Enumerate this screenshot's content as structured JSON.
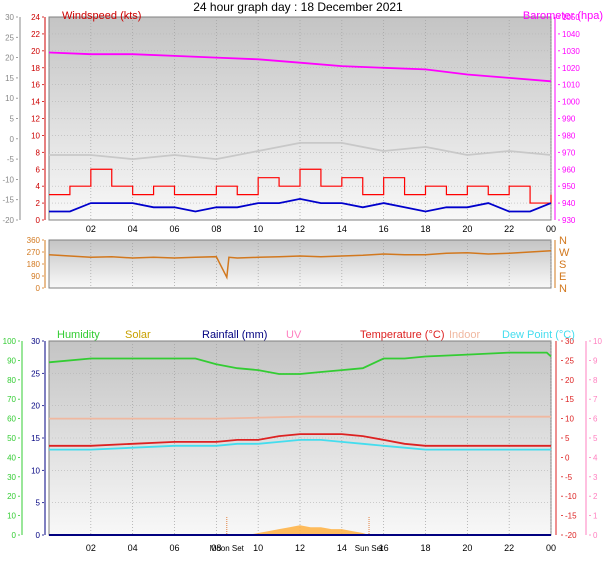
{
  "title": "24 hour graph day : 18 December 2021",
  "colors": {
    "windspeed": "#cc0000",
    "gust": "#ff0000",
    "avg_wind": "#0000cc",
    "barometer": "#ff00ff",
    "gray_series": "#c8c8c8",
    "direction": "#d2781e",
    "humidity": "#33cc33",
    "solar": "#c8a000",
    "solar_fill": "#ffb040",
    "rainfall": "#000080",
    "uv": "#ff80c0",
    "temperature": "#dd2222",
    "indoor": "#f0b8a0",
    "dewpoint": "#44ddee",
    "uv_axis": "#ff80c0"
  },
  "chart_data": [
    {
      "type": "line",
      "labels": {
        "left": "Windspeed (kts)",
        "right": "Barometer (hpa)"
      },
      "x_ticks": [
        "02",
        "04",
        "06",
        "08",
        "10",
        "12",
        "14",
        "16",
        "18",
        "20",
        "22",
        "00"
      ],
      "xlim": [
        0,
        24
      ],
      "outer_left_ticks": [
        "30",
        "25",
        "20",
        "15",
        "10",
        "5",
        "0",
        "-5",
        "-10",
        "-15",
        "-20"
      ],
      "outer_left_lim": [
        -20,
        30
      ],
      "left_ticks": [
        "24",
        "22",
        "20",
        "18",
        "16",
        "14",
        "12",
        "10",
        "8",
        "6",
        "4",
        "2",
        "0"
      ],
      "left_lim": [
        0,
        24
      ],
      "right_ticks": [
        "1050",
        "1040",
        "1030",
        "1020",
        "1010",
        "1000",
        "990",
        "980",
        "970",
        "960",
        "950",
        "940",
        "930"
      ],
      "right_lim": [
        930,
        1050
      ],
      "series": [
        {
          "key": "barometer",
          "axis": "right",
          "color_key": "barometer",
          "x": [
            0,
            2,
            4,
            6,
            8,
            10,
            12,
            14,
            16,
            18,
            20,
            22,
            24
          ],
          "y": [
            1029,
            1028,
            1028,
            1027,
            1026,
            1025,
            1023,
            1021,
            1020,
            1019,
            1016,
            1014,
            1012
          ]
        },
        {
          "key": "gray_series",
          "axis": "outer_left",
          "color_key": "gray_series",
          "x": [
            0,
            2,
            4,
            6,
            8,
            10,
            12,
            14,
            16,
            18,
            20,
            22,
            24
          ],
          "y": [
            -4,
            -4,
            -5,
            -4,
            -5,
            -3,
            -1,
            -1,
            -3,
            -2,
            -4,
            -3,
            -4
          ]
        },
        {
          "key": "gust",
          "axis": "left",
          "color_key": "gust",
          "x": [
            0,
            1,
            2,
            3,
            4,
            5,
            6,
            7,
            8,
            9,
            10,
            11,
            12,
            13,
            14,
            15,
            16,
            17,
            18,
            19,
            20,
            21,
            22,
            23,
            24
          ],
          "y": [
            3,
            4,
            6,
            4,
            3,
            4,
            3,
            3,
            4,
            3,
            5,
            4,
            6,
            4,
            5,
            3,
            5,
            3,
            4,
            3,
            4,
            3,
            4,
            2,
            3
          ]
        },
        {
          "key": "avg_wind",
          "axis": "left",
          "color_key": "avg_wind",
          "x": [
            0,
            1,
            2,
            3,
            4,
            5,
            6,
            7,
            8,
            9,
            10,
            11,
            12,
            13,
            14,
            15,
            16,
            17,
            18,
            19,
            20,
            21,
            22,
            23,
            24
          ],
          "y": [
            1,
            1,
            2,
            2,
            2,
            1.5,
            1.5,
            1,
            1.5,
            1.5,
            2,
            2,
            2.5,
            2,
            2,
            1.5,
            2,
            1.5,
            1,
            1.5,
            1.5,
            2,
            1,
            1,
            2
          ]
        }
      ]
    },
    {
      "type": "scatter",
      "labels": {
        "left": "",
        "right": ""
      },
      "x_ticks": [],
      "xlim": [
        0,
        24
      ],
      "left_ticks": [
        "360",
        "270",
        "180",
        "90",
        "0"
      ],
      "left_lim": [
        0,
        360
      ],
      "right_ticks": [
        "N",
        "W",
        "S",
        "E",
        "N"
      ],
      "series": [
        {
          "key": "direction",
          "axis": "left",
          "color_key": "direction",
          "x": [
            0,
            1,
            2,
            3,
            4,
            5,
            6,
            7,
            8,
            8.5,
            8.6,
            9,
            10,
            11,
            12,
            13,
            14,
            15,
            16,
            17,
            18,
            19,
            20,
            21,
            22,
            23,
            24
          ],
          "y": [
            250,
            240,
            230,
            235,
            225,
            230,
            225,
            230,
            235,
            80,
            230,
            225,
            230,
            235,
            240,
            235,
            240,
            245,
            255,
            250,
            250,
            260,
            265,
            255,
            260,
            270,
            280
          ]
        }
      ]
    },
    {
      "type": "line",
      "labels": {
        "humidity": "Humidity",
        "solar": "Solar",
        "rainfall": "Rainfall (mm)",
        "uv": "UV",
        "temperature": "Temperature (°C)",
        "indoor": "Indoor",
        "dewpoint": "Dew Point (°C)"
      },
      "x_ticks": [
        "02",
        "04",
        "06",
        "08",
        "10",
        "12",
        "14",
        "16",
        "18",
        "20",
        "22",
        "00"
      ],
      "x_annotations": [
        "Moon Set",
        "Sun Set"
      ],
      "xlim": [
        0,
        24
      ],
      "outer_left_ticks": [
        "100",
        "90",
        "80",
        "70",
        "60",
        "50",
        "40",
        "30",
        "20",
        "10",
        "0"
      ],
      "outer_left_lim": [
        0,
        100
      ],
      "left_ticks": [
        "30",
        "25",
        "20",
        "15",
        "10",
        "5",
        "0"
      ],
      "left_lim": [
        0,
        30
      ],
      "right_ticks": [
        "30",
        "25",
        "20",
        "15",
        "10",
        "5",
        "0",
        "-5",
        "-10",
        "-15",
        "-20"
      ],
      "right_lim": [
        -20,
        30
      ],
      "outer_right_ticks": [
        "10",
        "9",
        "8",
        "7",
        "6",
        "5",
        "4",
        "3",
        "2",
        "1",
        "0"
      ],
      "outer_right_lim": [
        0,
        10
      ],
      "series": [
        {
          "key": "humidity",
          "axis": "outer_left",
          "color_key": "humidity",
          "x": [
            0,
            2,
            4,
            6,
            7,
            8,
            9,
            10,
            11,
            12,
            13,
            14,
            15,
            16,
            17,
            18,
            20,
            22,
            23.8,
            24
          ],
          "y": [
            89,
            91,
            91,
            91,
            91,
            88,
            86,
            85,
            83,
            83,
            84,
            85,
            86,
            91,
            91,
            92,
            93,
            94,
            94,
            92
          ]
        },
        {
          "key": "indoor",
          "axis": "right",
          "color_key": "indoor",
          "x": [
            0,
            4,
            8,
            12,
            16,
            20,
            24
          ],
          "y": [
            10,
            10,
            10,
            10.5,
            10.5,
            10.5,
            10.5
          ]
        },
        {
          "key": "temperature",
          "axis": "right",
          "color_key": "temperature",
          "x": [
            0,
            2,
            4,
            6,
            7,
            8,
            9,
            10,
            11,
            12,
            13,
            14,
            15,
            16,
            17,
            18,
            20,
            22,
            24
          ],
          "y": [
            3,
            3,
            3.5,
            4,
            4,
            4,
            4.5,
            4.5,
            5.5,
            6,
            6,
            6,
            5.5,
            4.5,
            3.5,
            3,
            3,
            3,
            3
          ]
        },
        {
          "key": "dewpoint",
          "axis": "right",
          "color_key": "dewpoint",
          "x": [
            0,
            2,
            4,
            6,
            7,
            8,
            9,
            10,
            11,
            12,
            13,
            14,
            15,
            16,
            17,
            18,
            20,
            22,
            24
          ],
          "y": [
            2,
            2,
            2.5,
            3,
            3,
            3,
            3.5,
            3.5,
            4,
            4.5,
            4.5,
            4,
            3.5,
            3,
            2.5,
            2,
            2,
            2,
            2
          ]
        },
        {
          "key": "solar",
          "axis": "outer_left",
          "color_key": "solar_fill",
          "x": [
            9.5,
            10,
            10.5,
            11,
            11.5,
            12,
            12.5,
            13,
            13.5,
            14,
            14.5,
            15,
            15.3
          ],
          "y": [
            0,
            1,
            2,
            3,
            4,
            5,
            4,
            4,
            3,
            3,
            2,
            1,
            0
          ]
        },
        {
          "key": "rainfall",
          "axis": "left",
          "color_key": "rainfall",
          "x": [
            0,
            24
          ],
          "y": [
            0,
            0
          ]
        }
      ]
    }
  ]
}
